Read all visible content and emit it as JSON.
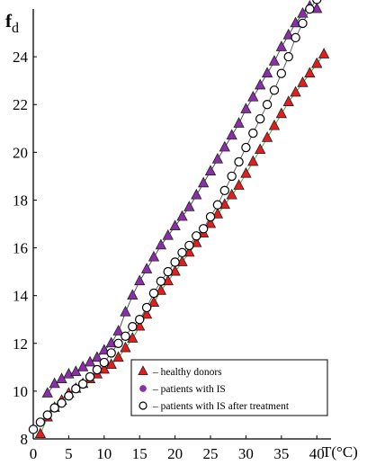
{
  "chart_data": {
    "type": "scatter",
    "ylabel_main": "f",
    "ylabel_sub": "d",
    "xlabel": "T(°C)",
    "xlim": [
      0,
      42
    ],
    "ylim": [
      8,
      26
    ],
    "xticks": [
      0,
      5,
      10,
      15,
      20,
      25,
      30,
      35,
      40
    ],
    "yticks": [
      8,
      10,
      12,
      14,
      16,
      18,
      20,
      22,
      24
    ],
    "grid": false,
    "legend_position": "bottom-right",
    "series": [
      {
        "name": "– healthy donors",
        "marker": "triangle",
        "color": "#e31e1e",
        "x": [
          1,
          2,
          3,
          4,
          5,
          6,
          7,
          8,
          9,
          10,
          11,
          12,
          13,
          14,
          15,
          16,
          17,
          18,
          19,
          20,
          21,
          22,
          23,
          24,
          25,
          26,
          27,
          28,
          29,
          30,
          31,
          32,
          33,
          34,
          35,
          36,
          37,
          38,
          39,
          40,
          41
        ],
        "y": [
          8.2,
          8.9,
          9.3,
          9.6,
          9.9,
          10.1,
          10.3,
          10.5,
          10.7,
          10.9,
          11.1,
          11.4,
          11.8,
          12.2,
          12.7,
          13.2,
          13.7,
          14.2,
          14.6,
          15.0,
          15.4,
          15.8,
          16.2,
          16.6,
          17.0,
          17.4,
          17.8,
          18.2,
          18.6,
          19.1,
          19.6,
          20.1,
          20.6,
          21.1,
          21.6,
          22.1,
          22.5,
          22.9,
          23.3,
          23.7,
          24.1
        ]
      },
      {
        "name": "– patients with IS",
        "marker": "triangle",
        "color": "#8b2fa8",
        "x": [
          2,
          3,
          4,
          5,
          6,
          7,
          8,
          9,
          10,
          11,
          12,
          13,
          14,
          15,
          16,
          17,
          18,
          19,
          20,
          21,
          22,
          23,
          24,
          25,
          26,
          27,
          28,
          29,
          30,
          31,
          32,
          33,
          34,
          35,
          36,
          37,
          38,
          39,
          40
        ],
        "y": [
          9.9,
          10.3,
          10.5,
          10.7,
          10.8,
          11.0,
          11.2,
          11.4,
          11.7,
          12.0,
          12.5,
          13.3,
          14.0,
          14.6,
          15.1,
          15.6,
          16.1,
          16.5,
          16.9,
          17.3,
          17.7,
          18.2,
          18.7,
          19.2,
          19.7,
          20.2,
          20.7,
          21.2,
          21.8,
          22.3,
          22.8,
          23.3,
          23.8,
          24.4,
          24.9,
          25.4,
          25.8,
          26.1,
          26.0
        ]
      },
      {
        "name": "– patients with IS after treatment",
        "marker": "circle",
        "color": "#000000",
        "x": [
          0,
          1,
          2,
          3,
          4,
          5,
          6,
          7,
          8,
          9,
          10,
          11,
          12,
          13,
          14,
          15,
          16,
          17,
          18,
          19,
          20,
          21,
          22,
          23,
          24,
          25,
          26,
          27,
          28,
          29,
          30,
          31,
          32,
          33,
          34,
          35,
          36,
          37,
          38,
          39,
          40
        ],
        "y": [
          8.4,
          8.7,
          9.0,
          9.3,
          9.5,
          9.8,
          10.1,
          10.3,
          10.6,
          10.9,
          11.2,
          11.6,
          12.0,
          12.3,
          12.7,
          13.0,
          13.5,
          14.1,
          14.6,
          15.0,
          15.4,
          15.8,
          16.1,
          16.5,
          16.8,
          17.3,
          17.8,
          18.4,
          19.0,
          19.6,
          20.2,
          20.8,
          21.4,
          22.0,
          22.6,
          23.3,
          24.0,
          24.8,
          25.4,
          26.0,
          26.4
        ]
      }
    ]
  }
}
